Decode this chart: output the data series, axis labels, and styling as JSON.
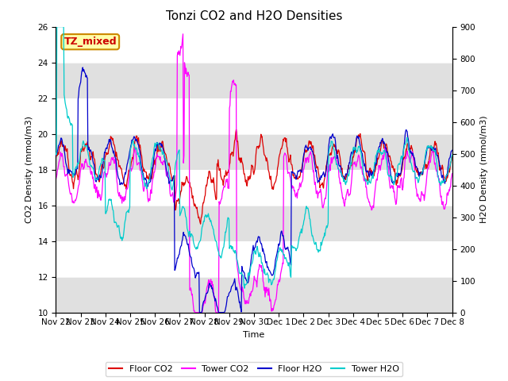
{
  "title": "Tonzi CO2 and H2O Densities",
  "xlabel": "Time",
  "ylabel_left": "CO2 Density (mmol/m3)",
  "ylabel_right": "H2O Density (mmol/m3)",
  "ylim_left": [
    10,
    26
  ],
  "ylim_right": [
    0,
    900
  ],
  "yticks_left": [
    10,
    12,
    14,
    16,
    18,
    20,
    22,
    24,
    26
  ],
  "yticks_right": [
    0,
    100,
    200,
    300,
    400,
    500,
    600,
    700,
    800,
    900
  ],
  "label_floor_co2": "Floor CO2",
  "label_tower_co2": "Tower CO2",
  "label_floor_h2o": "Floor H2O",
  "label_tower_h2o": "Tower H2O",
  "color_floor_co2": "#dd0000",
  "color_tower_co2": "#ff00ff",
  "color_floor_h2o": "#0000cc",
  "color_tower_h2o": "#00cccc",
  "annotation_text": "TZ_mixed",
  "annotation_color": "#cc0000",
  "annotation_bg": "#ffffaa",
  "annotation_edge": "#cc8800",
  "bg_band_color": "#e0e0e0",
  "n_points": 768,
  "title_fontsize": 11,
  "label_fontsize": 8,
  "tick_fontsize": 7.5
}
